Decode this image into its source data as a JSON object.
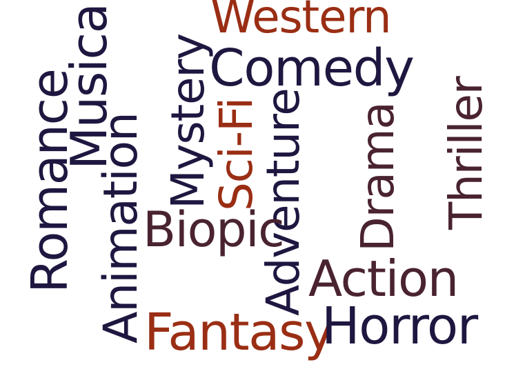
{
  "colors": {
    "navy": "#1f1740",
    "plum": "#4a2330",
    "rust": "#9a2e14"
  },
  "words": {
    "western": {
      "text": "Western",
      "color": "#9a2e14"
    },
    "comedy": {
      "text": "Comedy",
      "color": "#1f1740"
    },
    "romance": {
      "text": "Romance",
      "color": "#1f1740"
    },
    "musical": {
      "text": "Musical",
      "color": "#1f1740"
    },
    "animation": {
      "text": "Animation",
      "color": "#1f1740"
    },
    "mystery": {
      "text": "Mystery",
      "color": "#1f1740"
    },
    "scifi": {
      "text": "Sci-Fi",
      "color": "#9a2e14"
    },
    "adventure": {
      "text": "Adventure",
      "color": "#1f1740"
    },
    "drama": {
      "text": "Drama",
      "color": "#4a2330"
    },
    "thriller": {
      "text": "Thriller",
      "color": "#4a2330"
    },
    "biopic": {
      "text": "Biopic",
      "color": "#4a2330"
    },
    "action": {
      "text": "Action",
      "color": "#4a2330"
    },
    "fantasy": {
      "text": "Fantasy",
      "color": "#9a2e14"
    },
    "horror": {
      "text": "Horror",
      "color": "#1f1740"
    }
  }
}
